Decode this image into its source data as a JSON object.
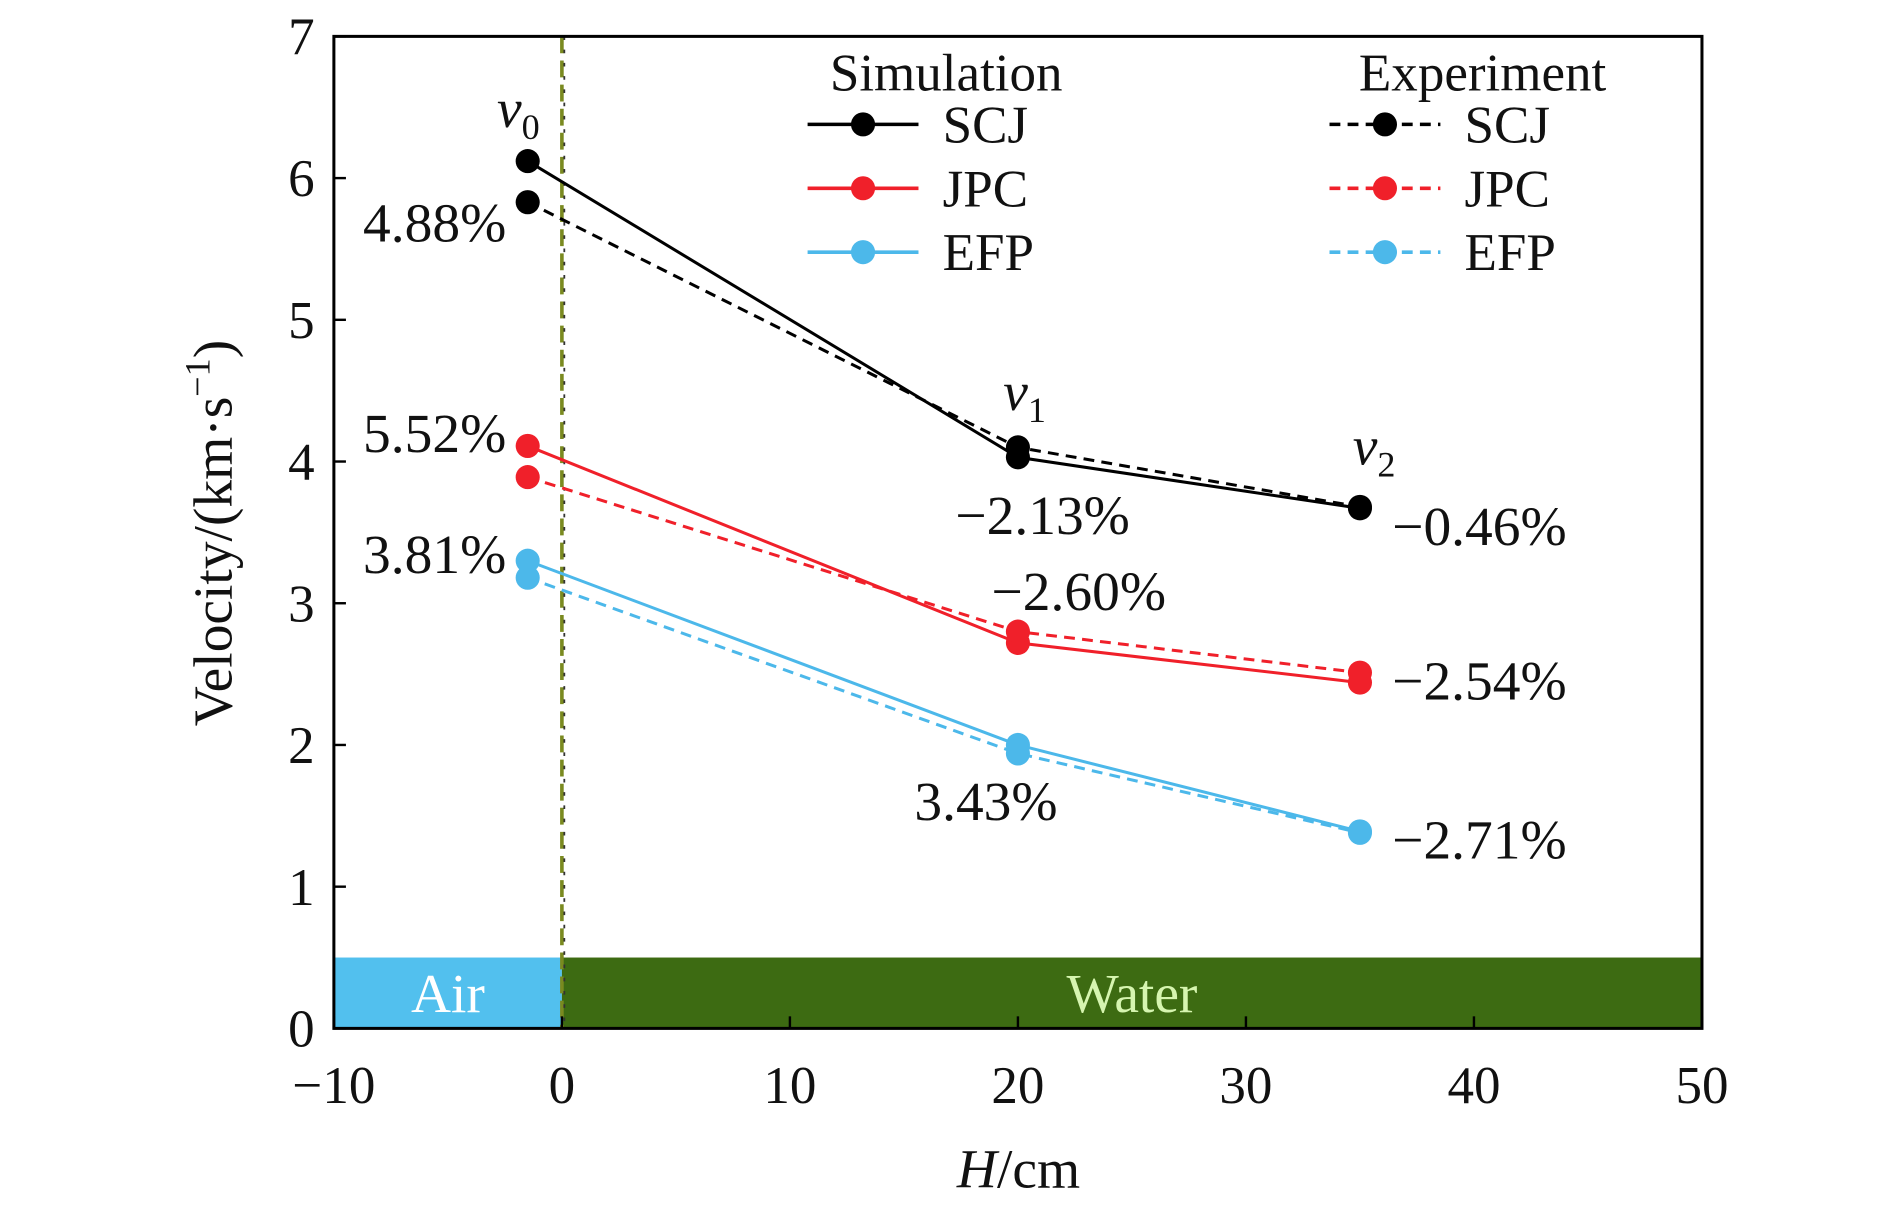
{
  "chart_data": {
    "type": "line",
    "xlabel_italic": "H",
    "xlabel_unit": "/cm",
    "ylabel": "Velocity/(km·s",
    "ylabel_sup": "−1",
    "ylabel_close": ")",
    "xlim": [
      -10,
      50
    ],
    "ylim": [
      0,
      7
    ],
    "xticks": [
      "−10",
      "0",
      "10",
      "20",
      "30",
      "40",
      "50"
    ],
    "xtick_values": [
      -10,
      0,
      10,
      20,
      30,
      40,
      50
    ],
    "yticks": [
      "0",
      "1",
      "2",
      "3",
      "4",
      "5",
      "6",
      "7"
    ],
    "ytick_values": [
      0,
      1,
      2,
      3,
      4,
      5,
      6,
      7
    ],
    "grid": false,
    "x": [
      -1.5,
      20,
      35
    ],
    "legend": {
      "placement": "top-right",
      "simulation_title": "Simulation",
      "experiment_title": "Experiment"
    },
    "series": [
      {
        "name": "SCJ",
        "group": "Simulation",
        "color": "#000000",
        "dashed": false,
        "values": [
          6.12,
          4.03,
          3.67
        ]
      },
      {
        "name": "JPC",
        "group": "Simulation",
        "color": "#f0202a",
        "dashed": false,
        "values": [
          4.11,
          2.72,
          2.44
        ]
      },
      {
        "name": "EFP",
        "group": "Simulation",
        "color": "#4cb8ea",
        "dashed": false,
        "values": [
          3.3,
          2.0,
          1.39
        ]
      },
      {
        "name": "SCJ",
        "group": "Experiment",
        "color": "#000000",
        "dashed": true,
        "values": [
          5.83,
          4.1,
          3.68
        ]
      },
      {
        "name": "JPC",
        "group": "Experiment",
        "color": "#f0202a",
        "dashed": true,
        "values": [
          3.89,
          2.8,
          2.51
        ]
      },
      {
        "name": "EFP",
        "group": "Experiment",
        "color": "#4cb8ea",
        "dashed": true,
        "values": [
          3.18,
          1.94,
          1.38
        ]
      }
    ],
    "point_labels": [
      {
        "base": "v",
        "sub": "0"
      },
      {
        "base": "v",
        "sub": "1"
      },
      {
        "base": "v",
        "sub": "2"
      }
    ],
    "annotations": [
      "4.88%",
      "5.52%",
      "3.81%",
      "−2.13%",
      "−2.60%",
      "3.43%",
      "−0.46%",
      "−2.54%",
      "−2.71%"
    ],
    "regions": [
      {
        "label": "Air",
        "from": -10,
        "to": 0,
        "color": "#52c0ee",
        "text_color": "#ffffff"
      },
      {
        "label": "Water",
        "from": 0,
        "to": 50,
        "color": "#3d6b12",
        "text_color": "#d6f5b0"
      }
    ],
    "interface_line_color": "#7a8a20"
  }
}
